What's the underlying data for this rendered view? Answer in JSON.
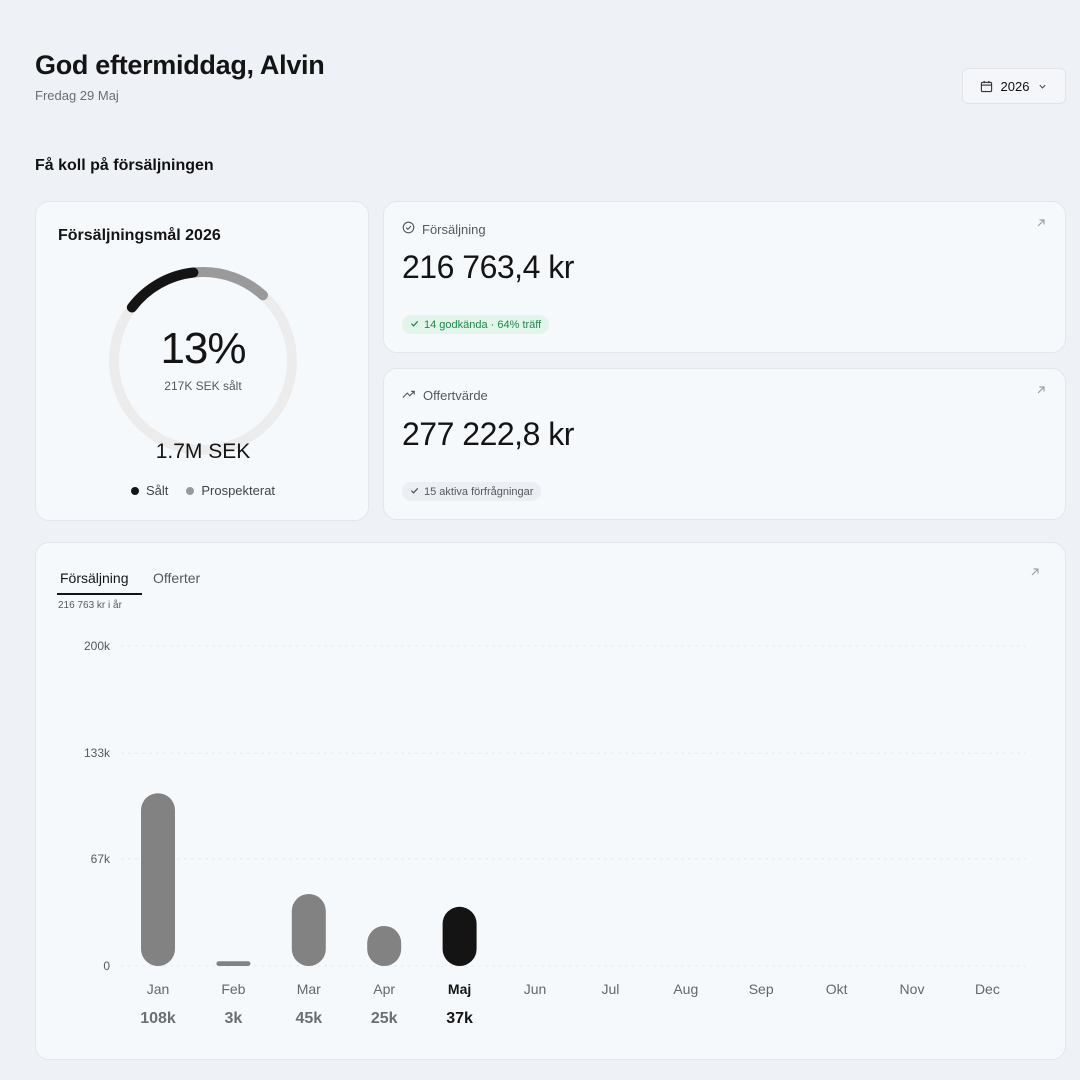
{
  "header": {
    "greeting": "God eftermiddag, Alvin",
    "date": "Fredag 29 Maj",
    "year_selector": "2026"
  },
  "section_title": "Få koll på försäljningen",
  "goal": {
    "title": "Försäljningsmål 2026",
    "percent_label": "13%",
    "sold_label": "217K SEK sålt",
    "total_label": "1.7M SEK",
    "sold_fraction": 0.13,
    "prospected_fraction": 0.265,
    "legend": [
      {
        "label": "Sålt",
        "color": "#141414"
      },
      {
        "label": "Prospekterat",
        "color": "#9a9a9a"
      }
    ]
  },
  "stats": [
    {
      "icon": "check-circle-icon",
      "label": "Försäljning",
      "value": "216 763,4 kr",
      "badge": "14 godkända · 64% träff",
      "badge_style": "green"
    },
    {
      "icon": "trending-up-icon",
      "label": "Offertvärde",
      "value": "277 222,8 kr",
      "badge": "15 aktiva förfrågningar",
      "badge_style": "gray"
    }
  ],
  "chart_tabs": [
    "Försäljning",
    "Offerter"
  ],
  "chart_subtitle": "216 763 kr i år",
  "colors": {
    "bar": "#828282",
    "bar_current": "#141414"
  },
  "chart_data": {
    "type": "bar",
    "categories": [
      "Jan",
      "Feb",
      "Mar",
      "Apr",
      "Maj",
      "Jun",
      "Jul",
      "Aug",
      "Sep",
      "Okt",
      "Nov",
      "Dec"
    ],
    "values": [
      108,
      3,
      45,
      25,
      37,
      null,
      null,
      null,
      null,
      null,
      null,
      null
    ],
    "value_labels": [
      "108k",
      "3k",
      "45k",
      "25k",
      "37k",
      "",
      "",
      "",
      "",
      "",
      "",
      ""
    ],
    "current_index": 4,
    "yticks": [
      "0",
      "67k",
      "133k",
      "200k"
    ],
    "ytick_values": [
      0,
      67,
      133,
      200
    ],
    "ylim": [
      0,
      200
    ],
    "grid": true
  }
}
